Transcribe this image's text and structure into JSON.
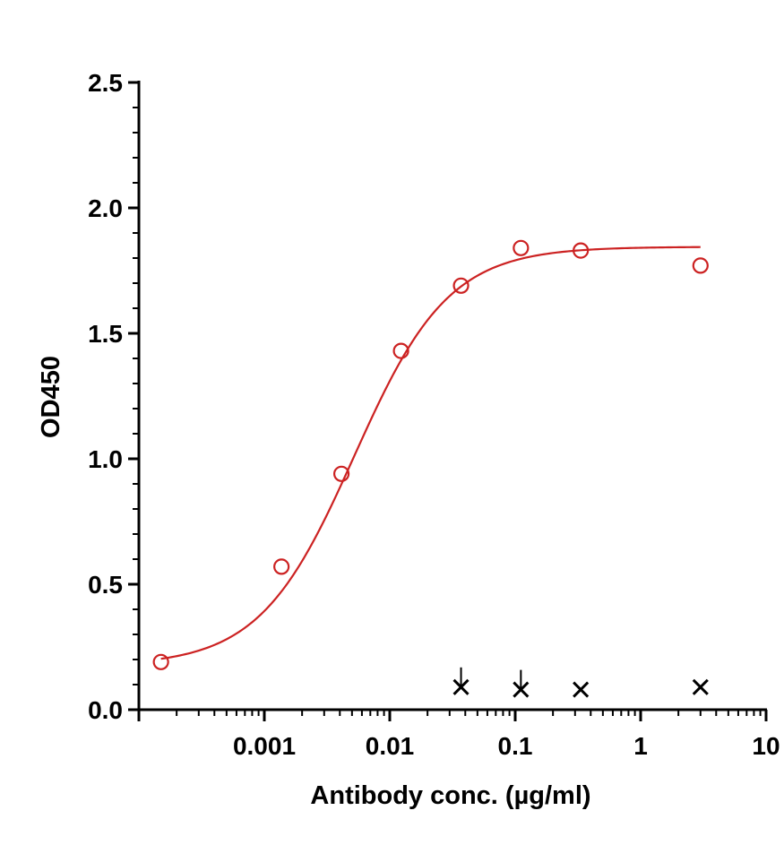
{
  "chart_data": {
    "type": "scatter",
    "title": "",
    "xlabel": "Antibody conc. (µg/ml)",
    "ylabel": "OD450",
    "x_scale": "log",
    "xlim": [
      0.0001,
      10
    ],
    "ylim": [
      0,
      2.5
    ],
    "x_ticks": [
      {
        "value": 0.001,
        "label": "0.001"
      },
      {
        "value": 0.01,
        "label": "0.01"
      },
      {
        "value": 0.1,
        "label": "0.1"
      },
      {
        "value": 1,
        "label": "1"
      },
      {
        "value": 10,
        "label": "10"
      }
    ],
    "y_ticks": [
      {
        "value": 0,
        "label": "0.0"
      },
      {
        "value": 0.5,
        "label": "0.5"
      },
      {
        "value": 1.0,
        "label": "1.0"
      },
      {
        "value": 1.5,
        "label": "1.5"
      },
      {
        "value": 2.0,
        "label": "2.0"
      },
      {
        "value": 2.5,
        "label": "2.5"
      }
    ],
    "grid": false,
    "series": [
      {
        "marker": "circle",
        "color": "#cc2222",
        "fit": "4PL",
        "x": [
          0.00015,
          0.00137,
          0.00412,
          0.0123,
          0.037,
          0.111,
          0.333,
          3.0
        ],
        "y": [
          0.19,
          0.57,
          0.94,
          1.43,
          1.69,
          1.84,
          1.83,
          1.77
        ]
      },
      {
        "marker": "x",
        "color": "#000000",
        "x": [
          0.037,
          0.111,
          0.333,
          3.0
        ],
        "y": [
          0.09,
          0.08,
          0.08,
          0.09
        ]
      }
    ]
  }
}
